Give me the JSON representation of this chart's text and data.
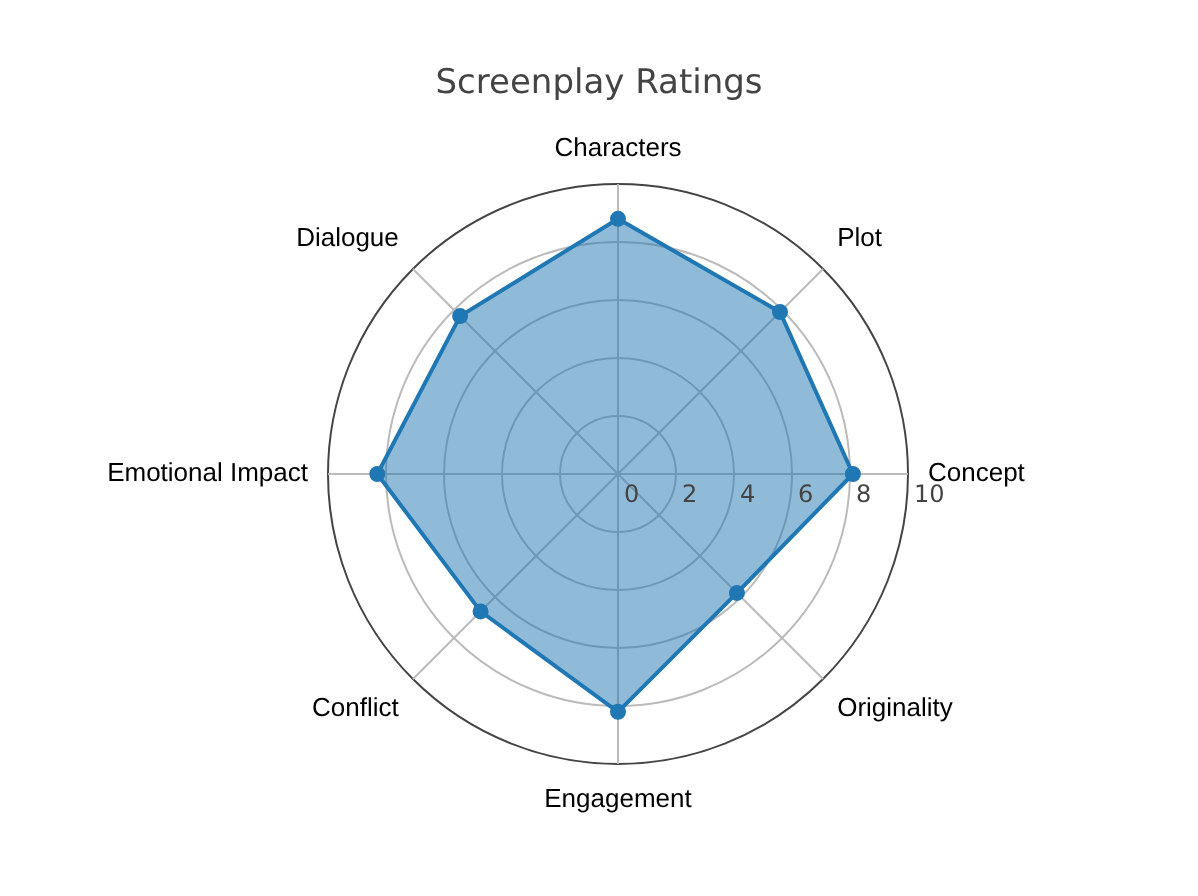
{
  "chart_data": {
    "type": "radar",
    "title": "Screenplay Ratings",
    "categories": [
      "Characters",
      "Plot",
      "Concept",
      "Originality",
      "Engagement",
      "Conflict",
      "Emotional Impact",
      "Dialogue"
    ],
    "series": [
      {
        "color": "#1f77b4",
        "values": [
          8.8,
          7.9,
          8.1,
          5.8,
          8.2,
          6.7,
          8.3,
          7.7
        ]
      }
    ],
    "ylim": [
      0,
      10
    ],
    "yticks": [
      0,
      2,
      4,
      6,
      8,
      10
    ],
    "grid": true,
    "marker": "circle",
    "legend": false
  }
}
